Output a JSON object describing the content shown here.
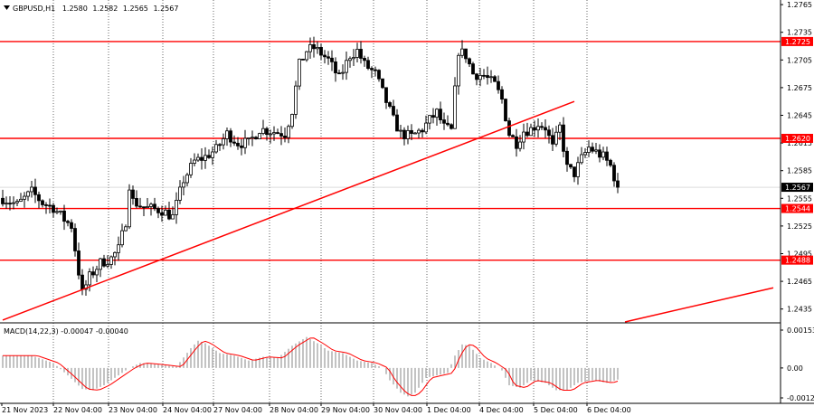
{
  "header": {
    "symbol": "GBPUSD,H1",
    "open": "1.2580",
    "high": "1.2582",
    "low": "1.2565",
    "close": "1.2567"
  },
  "macd": {
    "label": "MACD(14,22,3) -0.00047 -0.00040",
    "tick_labels": [
      "0.00153",
      "0.00",
      "-0.00121"
    ]
  },
  "colors": {
    "background": "#ffffff",
    "candle": "#000000",
    "grid": "#000000",
    "level_line": "#ff0000",
    "trend_line": "#ff0000",
    "price_tag_bg": "#ff0000",
    "price_tag_text": "#ffffff",
    "current_tag_bg": "#000000",
    "macd_hist": "#b4b4b4",
    "macd_signal": "#ff0000"
  },
  "chart_data": {
    "type": "candlestick",
    "ylim": [
      1.242,
      1.277
    ],
    "y_ticks": [
      "1.2765",
      "1.2735",
      "1.2705",
      "1.2675",
      "1.2645",
      "1.2615",
      "1.2585",
      "1.2555",
      "1.2525",
      "1.2495",
      "1.2465",
      "1.2435"
    ],
    "x_tick_labels": [
      "21 Nov 2023",
      "22 Nov 04:00",
      "23 Nov 04:00",
      "24 Nov 04:00",
      "27 Nov 04:00",
      "28 Nov 04:00",
      "29 Nov 04:00",
      "30 Nov 04:00",
      "1 Dec 04:00",
      "4 Dec 04:00",
      "5 Dec 04:00",
      "6 Dec 04:00"
    ],
    "horizontal_levels": [
      {
        "value": 1.2725,
        "label": "1.2725"
      },
      {
        "value": 1.262,
        "label": "1.2620"
      },
      {
        "value": 1.2544,
        "label": "1.2544"
      },
      {
        "value": 1.2488,
        "label": "1.2488"
      }
    ],
    "current_price": {
      "value": 1.2567,
      "label": "1.2567"
    },
    "trend_lines": [
      {
        "from": [
          0,
          1.2423
        ],
        "to": [
          158,
          1.266
        ]
      },
      {
        "from": [
          172,
          1.2421
        ],
        "to": [
          213,
          1.2458
        ]
      }
    ],
    "price_path": [
      [
        0,
        1.2555
      ],
      [
        4,
        1.2548
      ],
      [
        8,
        1.2562
      ],
      [
        11,
        1.255
      ],
      [
        14,
        1.2545
      ],
      [
        17,
        1.2532
      ],
      [
        19,
        1.2525
      ],
      [
        21,
        1.2475
      ],
      [
        22,
        1.2452
      ],
      [
        24,
        1.247
      ],
      [
        27,
        1.2485
      ],
      [
        30,
        1.249
      ],
      [
        32,
        1.25
      ],
      [
        34,
        1.253
      ],
      [
        35,
        1.257
      ],
      [
        36,
        1.2552
      ],
      [
        39,
        1.2545
      ],
      [
        44,
        1.2542
      ],
      [
        47,
        1.2535
      ],
      [
        50,
        1.2575
      ],
      [
        53,
        1.2595
      ],
      [
        56,
        1.26
      ],
      [
        59,
        1.2608
      ],
      [
        62,
        1.2625
      ],
      [
        65,
        1.2615
      ],
      [
        68,
        1.2615
      ],
      [
        71,
        1.263
      ],
      [
        74,
        1.2628
      ],
      [
        78,
        1.2625
      ],
      [
        80,
        1.265
      ],
      [
        82,
        1.27
      ],
      [
        84,
        1.2715
      ],
      [
        86,
        1.2718
      ],
      [
        88,
        1.2712
      ],
      [
        90,
        1.2705
      ],
      [
        93,
        1.2685
      ],
      [
        96,
        1.271
      ],
      [
        98,
        1.2715
      ],
      [
        100,
        1.27
      ],
      [
        103,
        1.269
      ],
      [
        106,
        1.266
      ],
      [
        108,
        1.264
      ],
      [
        110,
        1.2625
      ],
      [
        113,
        1.2622
      ],
      [
        116,
        1.263
      ],
      [
        118,
        1.264
      ],
      [
        120,
        1.2648
      ],
      [
        122,
        1.2632
      ],
      [
        124,
        1.2628
      ],
      [
        126,
        1.2715
      ],
      [
        128,
        1.271
      ],
      [
        130,
        1.269
      ],
      [
        133,
        1.2688
      ],
      [
        136,
        1.2678
      ],
      [
        138,
        1.2662
      ],
      [
        140,
        1.2625
      ],
      [
        142,
        1.2615
      ],
      [
        144,
        1.2628
      ],
      [
        146,
        1.263
      ],
      [
        148,
        1.2636
      ],
      [
        150,
        1.2632
      ],
      [
        152,
        1.261
      ],
      [
        154,
        1.2632
      ],
      [
        156,
        1.2588
      ],
      [
        158,
        1.2582
      ],
      [
        160,
        1.2598
      ],
      [
        162,
        1.261
      ],
      [
        164,
        1.2605
      ],
      [
        166,
        1.26
      ],
      [
        168,
        1.259
      ],
      [
        170,
        1.2567
      ]
    ],
    "macd_hist_path": [
      [
        0,
        0.0005
      ],
      [
        8,
        0.0005
      ],
      [
        14,
        0.0002
      ],
      [
        18,
        -0.0003
      ],
      [
        22,
        -0.00085
      ],
      [
        25,
        -0.0009
      ],
      [
        28,
        -0.0007
      ],
      [
        32,
        -0.0003
      ],
      [
        35,
        0.0
      ],
      [
        38,
        0.0002
      ],
      [
        42,
        0.00015
      ],
      [
        48,
        5e-05
      ],
      [
        52,
        0.0008
      ],
      [
        54,
        0.0011
      ],
      [
        56,
        0.001
      ],
      [
        60,
        0.0006
      ],
      [
        64,
        0.0005
      ],
      [
        68,
        0.0003
      ],
      [
        72,
        0.00045
      ],
      [
        76,
        0.0004
      ],
      [
        80,
        0.0009
      ],
      [
        84,
        0.00125
      ],
      [
        87,
        0.001
      ],
      [
        90,
        0.0007
      ],
      [
        94,
        0.0006
      ],
      [
        98,
        0.0003
      ],
      [
        102,
        0.0002
      ],
      [
        105,
        0.0
      ],
      [
        107,
        -0.0005
      ],
      [
        110,
        -0.001
      ],
      [
        112,
        -0.00115
      ],
      [
        114,
        -0.001
      ],
      [
        117,
        -0.0004
      ],
      [
        120,
        -0.0003
      ],
      [
        123,
        -0.0002
      ],
      [
        125,
        0.0005
      ],
      [
        127,
        0.00095
      ],
      [
        129,
        0.0009
      ],
      [
        132,
        0.0004
      ],
      [
        135,
        0.0002
      ],
      [
        138,
        -0.0001
      ],
      [
        140,
        -0.0007
      ],
      [
        143,
        -0.0008
      ],
      [
        146,
        -0.0005
      ],
      [
        150,
        -0.0006
      ],
      [
        153,
        -0.0009
      ],
      [
        156,
        -0.0009
      ],
      [
        159,
        -0.0006
      ],
      [
        163,
        -0.0005
      ],
      [
        167,
        -0.0006
      ],
      [
        170,
        -0.00047
      ]
    ]
  }
}
